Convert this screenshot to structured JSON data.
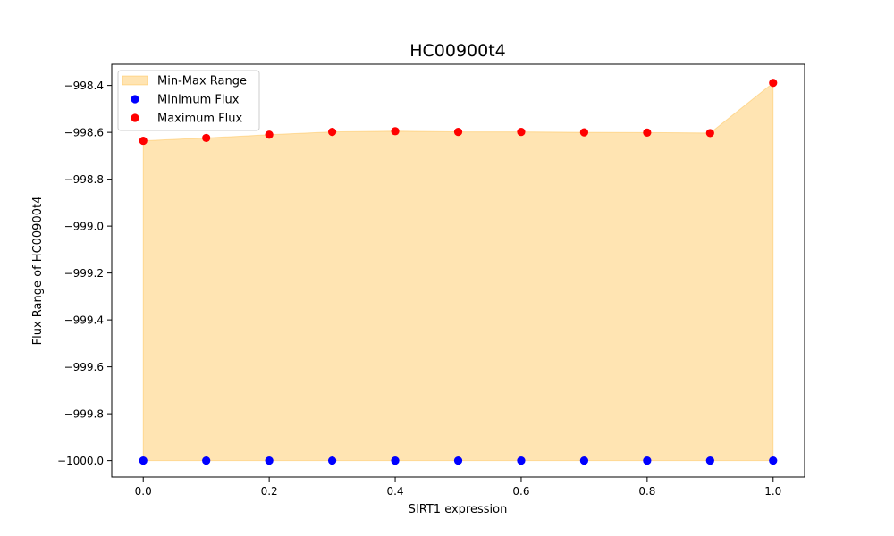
{
  "chart_data": {
    "type": "scatter",
    "title": "HC00900t4",
    "xlabel": "SIRT1 expression",
    "ylabel": "Flux Range of HC00900t4",
    "xlim": [
      -0.05,
      1.05
    ],
    "ylim": [
      -1000.07,
      -998.31
    ],
    "xticks": [
      0.0,
      0.2,
      0.4,
      0.6,
      0.8,
      1.0
    ],
    "xtick_labels": [
      "0.0",
      "0.2",
      "0.4",
      "0.6",
      "0.8",
      "1.0"
    ],
    "yticks": [
      -998.4,
      -998.6,
      -998.8,
      -999.0,
      -999.2,
      -999.4,
      -999.6,
      -999.8,
      -1000.0
    ],
    "ytick_labels": [
      "−998.4",
      "−998.6",
      "−998.8",
      "−999.0",
      "−999.2",
      "−999.4",
      "−999.6",
      "−999.8",
      "−1000.0"
    ],
    "x": [
      0.0,
      0.1,
      0.2,
      0.3,
      0.4,
      0.5,
      0.6,
      0.7,
      0.8,
      0.9,
      1.0
    ],
    "series": [
      {
        "name": "Minimum Flux",
        "color": "#0000ff",
        "values": [
          -1000.0,
          -1000.0,
          -1000.0,
          -1000.0,
          -1000.0,
          -1000.0,
          -1000.0,
          -1000.0,
          -1000.0,
          -1000.0,
          -1000.0
        ]
      },
      {
        "name": "Maximum Flux",
        "color": "#ff0000",
        "values": [
          -998.636,
          -998.624,
          -998.61,
          -998.598,
          -998.595,
          -998.598,
          -998.598,
          -998.6,
          -998.601,
          -998.603,
          -998.389
        ]
      }
    ],
    "fill": {
      "name": "Min-Max Range",
      "color": "#ffa500",
      "opacity": 0.3
    },
    "legend": {
      "position": "top-left",
      "entries": [
        "Min-Max Range",
        "Minimum Flux",
        "Maximum Flux"
      ]
    },
    "grid": false
  }
}
